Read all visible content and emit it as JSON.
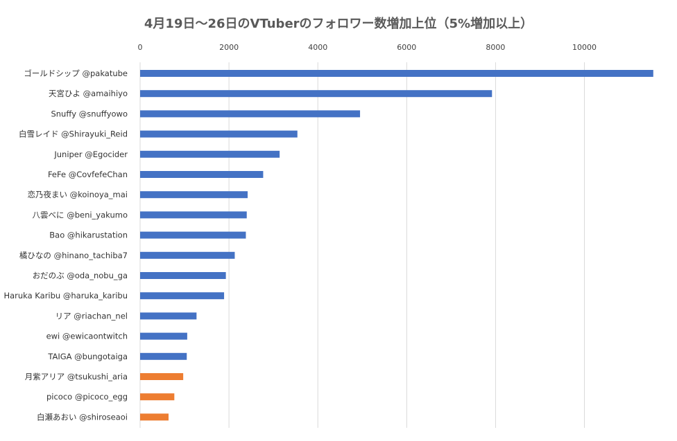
{
  "chart_data": {
    "type": "bar",
    "orientation": "horizontal",
    "title": "4月19日～26日のVTuberのフォロワー数増加上位（5%増加以上）",
    "xlim": [
      0,
      11600
    ],
    "x_ticks": [
      0,
      2000,
      4000,
      6000,
      8000,
      10000
    ],
    "x_tick_labels": [
      "0",
      "2000",
      "4000",
      "6000",
      "8000",
      "10000"
    ],
    "x_axis_position": "top",
    "grid": true,
    "colors": {
      "primary": "#4472C4",
      "secondary": "#ED7D31",
      "grid": "#D9D9D9"
    },
    "categories": [
      "ゴールドシップ @pakatube",
      "天宮ひよ @amaihiyo",
      "Snuffy @snuffyowo",
      "白雪レイド @Shirayuki_Reid",
      "Juniper @Egocider",
      "FeFe @CovfefeChan",
      "恋乃夜まい @koinoya_mai",
      "八雲べに @beni_yakumo",
      "Bao @hikarustation",
      "橘ひなの @hinano_tachiba7",
      "おだのぶ @oda_nobu_ga",
      "Haruka Karibu @haruka_karibu",
      "リア @riachan_nel",
      "ewi @ewicaontwitch",
      "TAIGA @bungotaiga",
      "月紫アリア @tsukushi_aria",
      "picoco @picoco_egg",
      "白瀬あおい @shiroseaoi"
    ],
    "values": [
      11550,
      7920,
      4950,
      3540,
      3140,
      2770,
      2420,
      2400,
      2380,
      2130,
      1930,
      1890,
      1270,
      1060,
      1050,
      970,
      770,
      640
    ],
    "bar_colors": [
      "primary",
      "primary",
      "primary",
      "primary",
      "primary",
      "primary",
      "primary",
      "primary",
      "primary",
      "primary",
      "primary",
      "primary",
      "primary",
      "primary",
      "primary",
      "secondary",
      "secondary",
      "secondary"
    ]
  }
}
